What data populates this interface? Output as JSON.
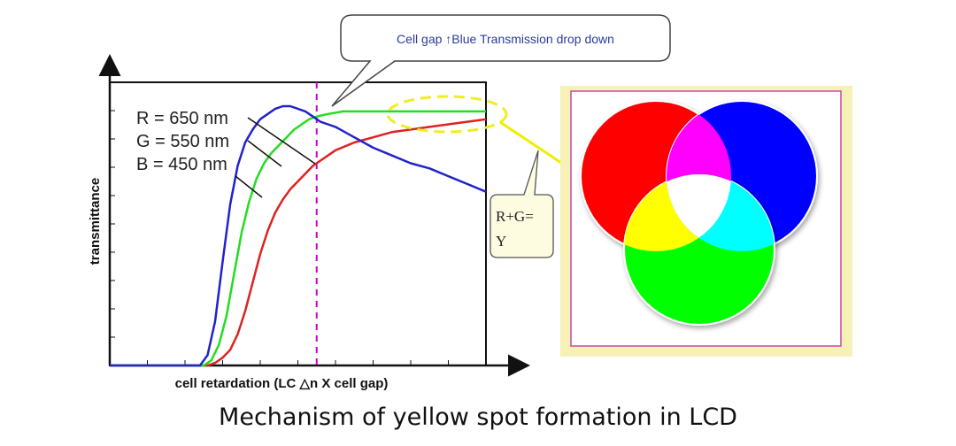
{
  "chart_data": {
    "type": "line",
    "title": "",
    "xlabel": "cell retardation (LC △n X cell gap)",
    "ylabel": "transmittance",
    "xlim": [
      0,
      100
    ],
    "ylim": [
      0,
      1
    ],
    "grid": false,
    "series": [
      {
        "name": "R = 650 nm",
        "color": "#dd2222",
        "x": [
          0,
          26,
          28,
          30,
          32,
          34,
          36,
          38,
          40,
          42,
          44,
          46,
          48,
          50,
          52,
          54,
          56,
          58,
          60,
          65,
          70,
          75,
          80,
          85,
          90,
          95,
          100
        ],
        "y": [
          0,
          0,
          0.01,
          0.03,
          0.06,
          0.12,
          0.21,
          0.32,
          0.43,
          0.52,
          0.59,
          0.64,
          0.68,
          0.71,
          0.74,
          0.77,
          0.79,
          0.81,
          0.83,
          0.86,
          0.88,
          0.9,
          0.91,
          0.92,
          0.93,
          0.94,
          0.95
        ]
      },
      {
        "name": "G = 550 nm",
        "color": "#22dd22",
        "x": [
          0,
          25,
          27,
          29,
          31,
          33,
          35,
          37,
          39,
          41,
          43,
          45,
          47,
          49,
          51,
          53,
          55,
          58,
          62,
          66,
          70,
          75,
          80,
          90,
          100
        ],
        "y": [
          0,
          0,
          0.02,
          0.08,
          0.19,
          0.35,
          0.51,
          0.63,
          0.72,
          0.78,
          0.82,
          0.85,
          0.88,
          0.91,
          0.93,
          0.95,
          0.96,
          0.97,
          0.98,
          0.98,
          0.98,
          0.98,
          0.98,
          0.98,
          0.98
        ]
      },
      {
        "name": "B = 450 nm",
        "color": "#2222cc",
        "x": [
          0,
          24,
          26,
          28,
          30,
          32,
          34,
          36,
          38,
          40,
          42,
          44,
          46,
          48,
          50,
          52,
          54,
          56,
          58,
          60,
          65,
          70,
          75,
          80,
          85,
          90,
          95,
          100
        ],
        "y": [
          0,
          0,
          0.04,
          0.17,
          0.4,
          0.62,
          0.77,
          0.86,
          0.91,
          0.95,
          0.97,
          0.99,
          1.0,
          1.0,
          0.99,
          0.98,
          0.96,
          0.94,
          0.93,
          0.92,
          0.88,
          0.84,
          0.81,
          0.78,
          0.76,
          0.73,
          0.7,
          0.67
        ]
      }
    ],
    "annotations": {
      "marker_x": 55,
      "series_labels": [
        "R = 650 nm",
        "G = 550 nm",
        "B = 450 nm"
      ]
    }
  },
  "callout": {
    "text": "Cell gap ↑Blue Transmission drop down"
  },
  "note": {
    "line1": "R+G=",
    "line2": "Y"
  },
  "venn": {
    "colors": {
      "red": "#ff0000",
      "green": "#00ff00",
      "blue": "#0000ff",
      "yellow": "#ffff00",
      "magenta": "#ff00ff",
      "cyan": "#00ffff",
      "white": "#ffffff",
      "frame": "#f7f1b5",
      "frame_border": "#cc44aa"
    }
  },
  "caption": "Mechanism of yellow spot formation in LCD"
}
